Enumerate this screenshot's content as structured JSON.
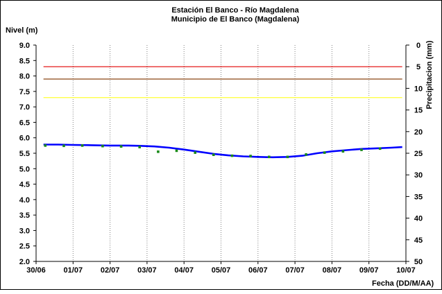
{
  "chart_data": {
    "type": "line",
    "title": "Estación El Banco - Río Magdalena",
    "subtitle": "Municipio de El Banco (Magdalena)",
    "ylabel": "Nivel (m)",
    "y2label": "Precipitacion (mm)",
    "xlabel": "Fecha (DD/M/AA)",
    "ylim": [
      2.0,
      9.0
    ],
    "y2lim": [
      0,
      50
    ],
    "y2_inverted": true,
    "xlim": [
      0,
      10
    ],
    "x_ticks": [
      0,
      1,
      2,
      3,
      4,
      5,
      6,
      7,
      8,
      9,
      10
    ],
    "x_tick_labels": [
      "30/06",
      "01/07",
      "02/07",
      "03/07",
      "04/07",
      "05/07",
      "06/07",
      "07/07",
      "08/07",
      "09/07",
      "10/07"
    ],
    "y_ticks": [
      2.0,
      2.5,
      3.0,
      3.5,
      4.0,
      4.5,
      5.0,
      5.5,
      6.0,
      6.5,
      7.0,
      7.5,
      8.0,
      8.5,
      9.0
    ],
    "y_tick_labels": [
      "2.0",
      "2.5",
      "3.0",
      "3.5",
      "4.0",
      "4.5",
      "5.0",
      "5.5",
      "6.0",
      "6.5",
      "7.0",
      "7.5",
      "8.0",
      "8.5",
      "9.0"
    ],
    "y2_ticks": [
      0,
      5,
      10,
      15,
      20,
      25,
      30,
      35,
      40,
      45,
      50
    ],
    "y2_tick_labels": [
      "0",
      "5",
      "10",
      "15",
      "20",
      "25",
      "30",
      "35",
      "40",
      "45",
      "50"
    ],
    "grid": "vertical",
    "reference_lines": [
      {
        "y": 8.3,
        "color": "#e00000"
      },
      {
        "y": 7.9,
        "color": "#8b4513"
      },
      {
        "y": 7.3,
        "color": "#ffff33"
      }
    ],
    "series": [
      {
        "kind": "line",
        "color": "#0000ff",
        "x": [
          0.2,
          0.6,
          1.0,
          1.5,
          2.0,
          2.5,
          2.8,
          3.2,
          3.6,
          4.0,
          4.4,
          4.8,
          5.2,
          5.6,
          6.0,
          6.4,
          6.8,
          7.2,
          7.6,
          8.0,
          8.4,
          8.8,
          9.2,
          9.6,
          9.9
        ],
        "y": [
          5.78,
          5.78,
          5.77,
          5.76,
          5.75,
          5.75,
          5.74,
          5.72,
          5.68,
          5.62,
          5.55,
          5.48,
          5.43,
          5.4,
          5.38,
          5.37,
          5.38,
          5.42,
          5.5,
          5.56,
          5.6,
          5.64,
          5.66,
          5.68,
          5.7
        ]
      },
      {
        "kind": "points",
        "color": "#1a8a1a",
        "x": [
          0.25,
          0.75,
          1.25,
          1.8,
          2.3,
          2.8,
          3.3,
          3.8,
          4.3,
          4.8,
          5.3,
          5.8,
          6.3,
          6.8,
          7.3,
          7.8,
          8.3,
          8.8,
          9.3
        ],
        "y": [
          5.75,
          5.74,
          5.75,
          5.73,
          5.72,
          5.7,
          5.55,
          5.58,
          5.52,
          5.45,
          5.42,
          5.41,
          5.38,
          5.38,
          5.46,
          5.52,
          5.56,
          5.61,
          5.65
        ]
      }
    ],
    "colors": {
      "axis": "#000000",
      "grid": "#808080"
    }
  }
}
